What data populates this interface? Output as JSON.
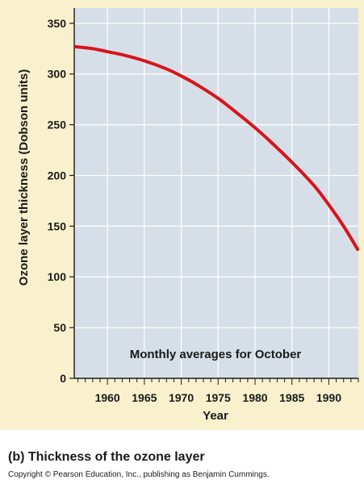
{
  "chart_data": {
    "type": "line",
    "title": "Thickness of the ozone layer",
    "xlabel": "Year",
    "ylabel": "Ozone layer thickness (Dobson units)",
    "xlim": [
      1955.5,
      1994
    ],
    "ylim": [
      0,
      365
    ],
    "grid": true,
    "x_ticks": [
      1960,
      1965,
      1970,
      1975,
      1980,
      1985,
      1990
    ],
    "y_ticks": [
      0,
      50,
      100,
      150,
      200,
      250,
      300,
      350
    ],
    "annotation": "Monthly averages for October",
    "series": [
      {
        "name": "Ozone thickness",
        "x": [
          1955.5,
          1958,
          1960,
          1962,
          1965,
          1968,
          1970,
          1972,
          1975,
          1978,
          1980,
          1982,
          1985,
          1988,
          1990,
          1992,
          1994
        ],
        "y": [
          327,
          325,
          322,
          319,
          313,
          305,
          298,
          290,
          276,
          259,
          247,
          234,
          213,
          190,
          171,
          150,
          126
        ]
      }
    ],
    "colors": {
      "line": "#d8141c",
      "plot_bg": "#d6dfe7",
      "grid": "#ffffff",
      "panel_bg": "#f9f1cd"
    }
  },
  "caption": "(b) Thickness of the ozone layer",
  "copyright": "Copyright © Pearson Education, Inc., publishing as Benjamin Cummings."
}
